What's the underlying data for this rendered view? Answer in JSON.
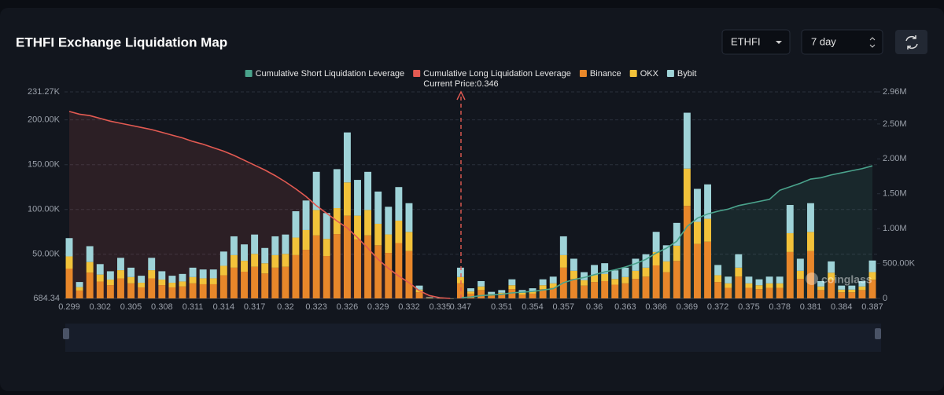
{
  "header": {
    "title": "ETHFI Exchange Liquidation Map",
    "symbol_select": "ETHFI",
    "period_select": "7 day"
  },
  "chart_data": {
    "type": "bar",
    "stacked": true,
    "annotation": "Current Price:0.346",
    "watermark": "coinglass",
    "grid": true,
    "categories": [
      "0.299",
      null,
      null,
      "0.302",
      null,
      null,
      "0.305",
      null,
      null,
      "0.308",
      null,
      null,
      "0.311",
      null,
      null,
      "0.314",
      null,
      null,
      "0.317",
      null,
      null,
      "0.32",
      null,
      null,
      "0.323",
      null,
      null,
      "0.326",
      null,
      null,
      "0.329",
      null,
      null,
      "0.332",
      null,
      null,
      "0.335",
      null,
      "0.347",
      null,
      null,
      null,
      "0.351",
      null,
      null,
      "0.354",
      null,
      null,
      "0.357",
      null,
      null,
      "0.36",
      null,
      null,
      "0.363",
      null,
      null,
      "0.366",
      null,
      null,
      "0.369",
      null,
      null,
      "0.372",
      null,
      null,
      "0.375",
      null,
      null,
      "0.378",
      null,
      null,
      "0.381",
      null,
      null,
      "0.384",
      null,
      null,
      "0.387"
    ],
    "ylim": [
      684.34,
      231270
    ],
    "yticks": [
      684.34,
      {
        "value": 50000,
        "label": "50.00K"
      },
      {
        "value": 100000,
        "label": "100.00K"
      },
      {
        "value": 150000,
        "label": "150.00K"
      },
      {
        "value": 200000,
        "label": "200.00K"
      },
      {
        "value": 231270,
        "label": "231.27K"
      }
    ],
    "y2lim": [
      0,
      2960000
    ],
    "y2ticks": [
      0,
      {
        "value": 500000,
        "label": "500.00K"
      },
      {
        "value": 1000000,
        "label": "1.00M"
      },
      {
        "value": 1500000,
        "label": "1.50M"
      },
      {
        "value": 2000000,
        "label": "2.00M"
      },
      {
        "value": 2500000,
        "label": "2.50M"
      },
      {
        "value": 2960000,
        "label": "2.96M"
      }
    ],
    "series": [
      {
        "name": "Cumulative Short Liquidation Leverage",
        "color": "#4aa38c",
        "type": "line",
        "axis": "y2",
        "values": [
          null,
          null,
          null,
          null,
          null,
          null,
          null,
          null,
          null,
          null,
          null,
          null,
          null,
          null,
          null,
          null,
          null,
          null,
          null,
          null,
          null,
          null,
          null,
          null,
          null,
          null,
          null,
          null,
          null,
          null,
          null,
          null,
          null,
          null,
          null,
          null,
          null,
          null,
          10000,
          20000,
          40000,
          50000,
          60000,
          80000,
          90000,
          100000,
          120000,
          140000,
          225000,
          270000,
          300000,
          340000,
          380000,
          410000,
          450000,
          500000,
          560000,
          650000,
          720000,
          820000,
          1030000,
          1150000,
          1210000,
          1250000,
          1280000,
          1330000,
          1360000,
          1390000,
          1420000,
          1550000,
          1600000,
          1650000,
          1710000,
          1730000,
          1770000,
          1800000,
          1830000,
          1860000,
          1900000
        ]
      },
      {
        "name": "Cumulative Long Liquidation Leverage",
        "color": "#e35a52",
        "type": "line",
        "axis": "y2",
        "values": [
          2680000,
          2640000,
          2620000,
          2580000,
          2540000,
          2510000,
          2480000,
          2450000,
          2420000,
          2380000,
          2340000,
          2300000,
          2250000,
          2210000,
          2160000,
          2110000,
          2050000,
          1980000,
          1910000,
          1840000,
          1760000,
          1670000,
          1570000,
          1460000,
          1330000,
          1220000,
          1110000,
          1010000,
          870000,
          720000,
          560000,
          430000,
          320000,
          225000,
          110000,
          40000,
          10000,
          0,
          null,
          null,
          null,
          null,
          null,
          null,
          null,
          null,
          null,
          null,
          null,
          null,
          null,
          null,
          null,
          null,
          null,
          null,
          null,
          null,
          null,
          null,
          null,
          null,
          null,
          null,
          null,
          null,
          null,
          null,
          null,
          null,
          null,
          null,
          null,
          null,
          null,
          null,
          null,
          null,
          null
        ]
      },
      {
        "name": "Binance",
        "color": "#e8872a",
        "values": [
          34000,
          9500,
          29500,
          19500,
          15500,
          23000,
          17500,
          13000,
          23000,
          15500,
          13000,
          14000,
          17500,
          16500,
          16500,
          26500,
          35000,
          30500,
          36000,
          28500,
          35000,
          36000,
          49000,
          55000,
          71000,
          48000,
          72500,
          93000,
          66500,
          71000,
          60000,
          51500,
          62500,
          53500,
          7500,
          1000,
          500,
          300,
          17500,
          6000,
          10000,
          4000,
          5000,
          11000,
          5000,
          6000,
          11000,
          12500,
          35000,
          22500,
          15000,
          19000,
          20000,
          16000,
          17500,
          22500,
          25000,
          37500,
          30000,
          42500,
          104000,
          61500,
          64000,
          19000,
          12500,
          25000,
          12500,
          11000,
          12500,
          12500,
          52500,
          22500,
          53500,
          10000,
          21000,
          7500,
          7500,
          10000,
          21500
        ]
      },
      {
        "name": "OKX",
        "color": "#f2c23a",
        "values": [
          13600,
          3800,
          11800,
          7800,
          6200,
          9200,
          7000,
          5200,
          9200,
          6200,
          5200,
          5600,
          7000,
          6600,
          6600,
          10600,
          14000,
          12200,
          14400,
          11400,
          14000,
          14400,
          19600,
          22000,
          28400,
          19200,
          29000,
          37200,
          26600,
          28400,
          24000,
          20600,
          25000,
          21400,
          3000,
          400,
          200,
          100,
          7000,
          2400,
          4000,
          1600,
          2000,
          4400,
          2000,
          2400,
          4400,
          5000,
          14000,
          9000,
          6000,
          7600,
          8000,
          6400,
          7000,
          9000,
          10000,
          15000,
          12000,
          17000,
          41600,
          24600,
          25600,
          7600,
          5000,
          10000,
          5000,
          4400,
          5000,
          5000,
          21000,
          9000,
          21400,
          4000,
          8400,
          3000,
          3000,
          4000,
          8600
        ]
      },
      {
        "name": "Bybit",
        "color": "#9fd3d8",
        "values": [
          20400,
          5700,
          17700,
          11700,
          9300,
          13800,
          10500,
          7800,
          13800,
          9300,
          7800,
          8400,
          10500,
          9900,
          9900,
          15900,
          21000,
          18300,
          21600,
          17100,
          21000,
          21600,
          29400,
          33000,
          42600,
          28800,
          43500,
          55800,
          39900,
          42600,
          36000,
          30900,
          37500,
          32100,
          4500,
          600,
          300,
          100,
          10500,
          3600,
          6000,
          2400,
          3000,
          6600,
          3000,
          3600,
          6600,
          7500,
          21000,
          13500,
          9000,
          11400,
          12000,
          9600,
          10500,
          13500,
          15000,
          22500,
          18000,
          25500,
          62400,
          36900,
          38400,
          11400,
          7500,
          15000,
          7500,
          6600,
          7500,
          7500,
          31500,
          13500,
          32100,
          6000,
          12600,
          4500,
          4500,
          6000,
          12900
        ]
      }
    ]
  }
}
